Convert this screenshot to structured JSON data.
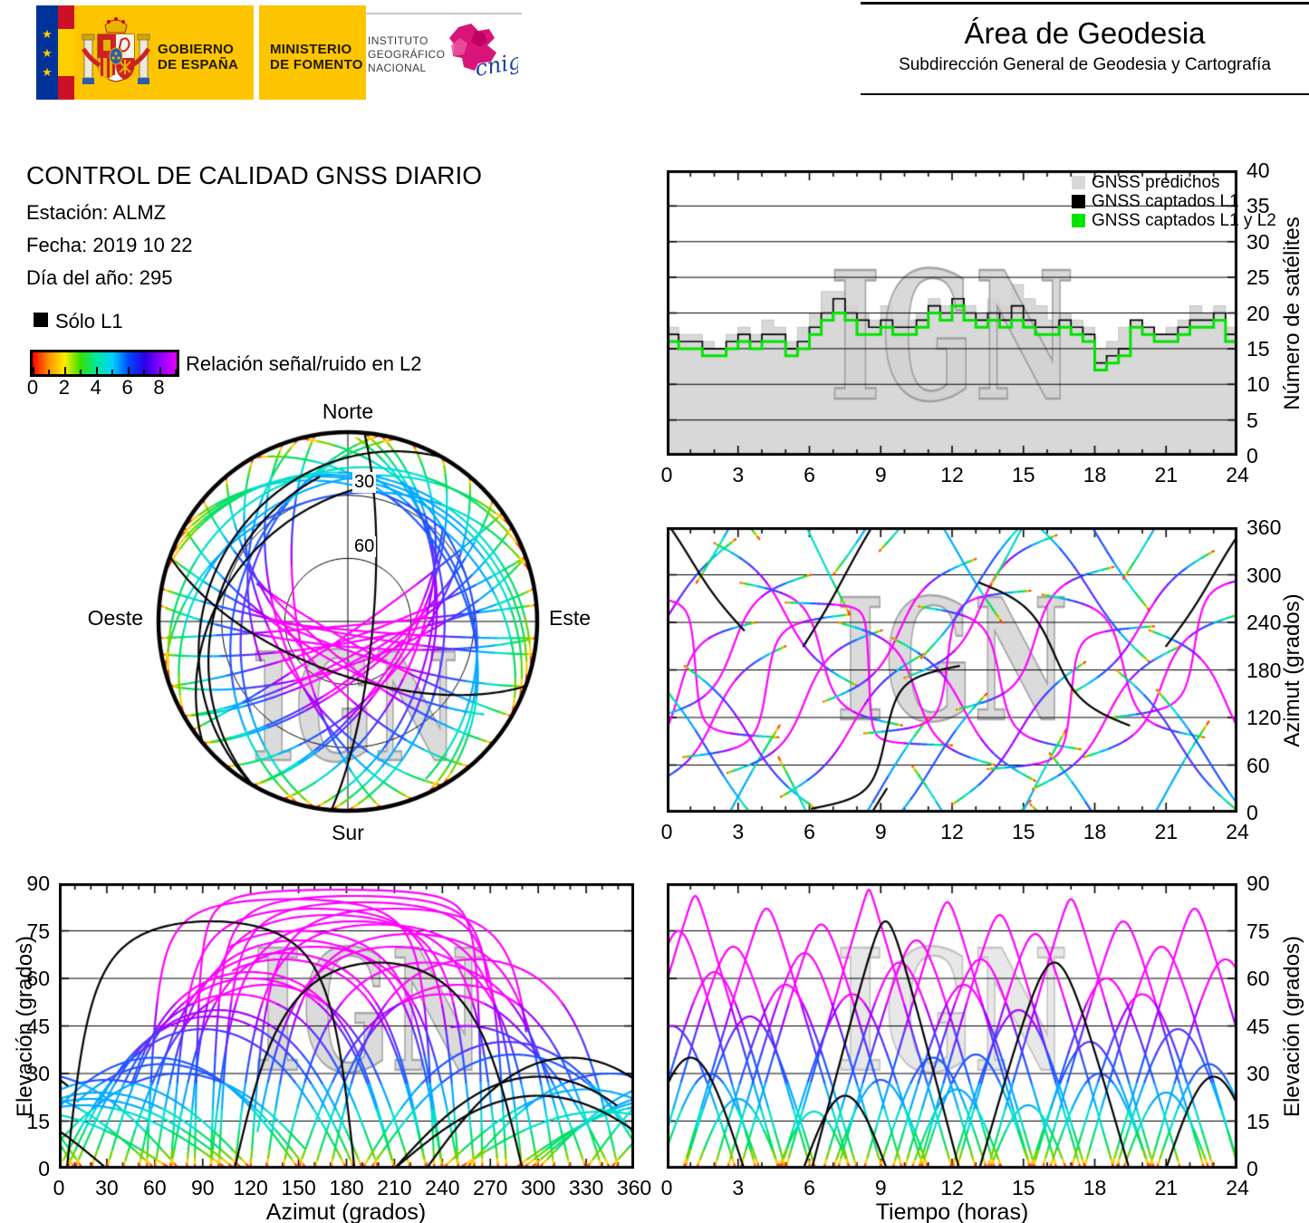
{
  "watermark": "IGN",
  "banner": {
    "gobierno_line1": "GOBIERNO",
    "gobierno_line2": "DE ESPAÑA",
    "ministerio_line1": "MINISTERIO",
    "ministerio_line2": "DE FOMENTO",
    "instituto_line1": "INSTITUTO",
    "instituto_line2": "GEOGRÁFICO",
    "instituto_line3": "NACIONAL",
    "cnig_text": "cnig",
    "colors": {
      "yellow": "#fdc400",
      "navy": "#003399",
      "flag_red": "#cc1126",
      "star": "#ffcc00",
      "cnig_magenta": "#d6006e",
      "cnig_blue": "#1a3f9e"
    }
  },
  "header_right": {
    "title": "Área de Geodesia",
    "subtitle": "Subdirección General de Geodesia y Cartografía"
  },
  "report": {
    "title": "CONTROL DE CALIDAD GNSS DIARIO",
    "station_label": "Estación:",
    "station_value": "ALMZ",
    "date_label": "Fecha:",
    "date_value": "2019 10 22",
    "doy_label": "Día del año:",
    "doy_value": "295"
  },
  "legend": {
    "solo_l1_label": "Sólo L1",
    "solo_l1_color": "#000000",
    "colorbar_label": "Relación señal/ruido en L2",
    "colorbar_ticks": [
      "0",
      "2",
      "4",
      "6",
      "8"
    ],
    "colorbar_range": [
      0,
      9
    ],
    "colorbar_colors": [
      "#ff0000",
      "#ff9000",
      "#ffee00",
      "#33e000",
      "#00e8a0",
      "#00cfff",
      "#0048ff",
      "#2a00e8",
      "#9000ff",
      "#e400ff"
    ]
  },
  "track_color_scale": [
    {
      "min_elevation": 52,
      "color": "#ff00ff"
    },
    {
      "min_elevation": 44,
      "color": "#a800ff"
    },
    {
      "min_elevation": 36,
      "color": "#5533ff"
    },
    {
      "min_elevation": 27,
      "color": "#2255ff"
    },
    {
      "min_elevation": 19,
      "color": "#00aaff"
    },
    {
      "min_elevation": 12,
      "color": "#00ddcc"
    },
    {
      "min_elevation": 6,
      "color": "#00dd66"
    },
    {
      "min_elevation": 3,
      "color": "#66d400"
    },
    {
      "min_elevation": 1.5,
      "color": "#ffcc00"
    },
    {
      "min_elevation": 0,
      "color": "#ff4400"
    }
  ],
  "l1_only_color": "#000000",
  "passes": [
    {
      "tc": 0.2,
      "azc": 255,
      "emax": 45,
      "dur": 5.4,
      "dir": 1
    },
    {
      "tc": 0.5,
      "azc": 150,
      "emax": 75,
      "dur": 6.5,
      "dir": 1
    },
    {
      "tc": 1.0,
      "azc": 320,
      "emax": 35,
      "dur": 4.5,
      "dir": -1,
      "l1_only": true
    },
    {
      "tc": 1.2,
      "azc": 185,
      "emax": 86,
      "dur": 7.0,
      "dir": -1
    },
    {
      "tc": 1.8,
      "azc": 75,
      "emax": 30,
      "dur": 4.2,
      "dir": -1
    },
    {
      "tc": 2.0,
      "azc": 120,
      "emax": 62,
      "dur": 6.0,
      "dir": 1
    },
    {
      "tc": 2.8,
      "azc": 210,
      "emax": 70,
      "dur": 6.5,
      "dir": 1
    },
    {
      "tc": 3.0,
      "azc": 20,
      "emax": 22,
      "dur": 3.5,
      "dir": 1
    },
    {
      "tc": 3.5,
      "azc": 95,
      "emax": 48,
      "dur": 5.5,
      "dir": -1
    },
    {
      "tc": 4.2,
      "azc": 160,
      "emax": 82,
      "dur": 7.0,
      "dir": 1
    },
    {
      "tc": 5.0,
      "azc": 250,
      "emax": 58,
      "dur": 6.0,
      "dir": -1
    },
    {
      "tc": 5.8,
      "azc": 140,
      "emax": 68,
      "dur": 6.5,
      "dir": 1
    },
    {
      "tc": 6.2,
      "azc": 340,
      "emax": 18,
      "dur": 3.0,
      "dir": -1
    },
    {
      "tc": 6.5,
      "azc": 200,
      "emax": 77,
      "dur": 6.8,
      "dir": -1
    },
    {
      "tc": 7.5,
      "azc": 300,
      "emax": 23,
      "dur": 3.5,
      "dir": 1,
      "l1_only": true
    },
    {
      "tc": 7.8,
      "azc": 110,
      "emax": 55,
      "dur": 6.0,
      "dir": 1
    },
    {
      "tc": 8.5,
      "azc": 175,
      "emax": 88,
      "dur": 7.0,
      "dir": -1
    },
    {
      "tc": 9.0,
      "azc": 30,
      "emax": 28,
      "dur": 4.0,
      "dir": 1
    },
    {
      "tc": 9.2,
      "azc": 95,
      "emax": 78,
      "dur": 6.2,
      "dir": 1,
      "l1_only": true
    },
    {
      "tc": 9.8,
      "azc": 230,
      "emax": 65,
      "dur": 6.4,
      "dir": 1
    },
    {
      "tc": 10.5,
      "azc": 150,
      "emax": 72,
      "dur": 6.6,
      "dir": -1
    },
    {
      "tc": 11.2,
      "azc": 60,
      "emax": 35,
      "dur": 4.5,
      "dir": 1
    },
    {
      "tc": 11.8,
      "azc": 190,
      "emax": 84,
      "dur": 7.0,
      "dir": 1
    },
    {
      "tc": 12.2,
      "azc": 330,
      "emax": 25,
      "dur": 3.8,
      "dir": -1
    },
    {
      "tc": 12.5,
      "azc": 130,
      "emax": 58,
      "dur": 6.0,
      "dir": -1
    },
    {
      "tc": 13.0,
      "azc": 285,
      "emax": 36,
      "dur": 4.6,
      "dir": 1
    },
    {
      "tc": 13.2,
      "azc": 260,
      "emax": 66,
      "dur": 6.4,
      "dir": 1
    },
    {
      "tc": 14.0,
      "azc": 170,
      "emax": 80,
      "dur": 6.8,
      "dir": -1
    },
    {
      "tc": 14.8,
      "azc": 100,
      "emax": 50,
      "dur": 5.6,
      "dir": 1
    },
    {
      "tc": 15.2,
      "azc": 15,
      "emax": 20,
      "dur": 3.2,
      "dir": 1
    },
    {
      "tc": 15.5,
      "azc": 220,
      "emax": 74,
      "dur": 6.6,
      "dir": 1
    },
    {
      "tc": 16.3,
      "azc": 200,
      "emax": 65,
      "dur": 6.3,
      "dir": -1,
      "l1_only": true
    },
    {
      "tc": 17.0,
      "azc": 145,
      "emax": 85,
      "dur": 7.0,
      "dir": 1
    },
    {
      "tc": 17.8,
      "azc": 280,
      "emax": 40,
      "dur": 5.0,
      "dir": -1
    },
    {
      "tc": 18.2,
      "azc": 345,
      "emax": 30,
      "dur": 4.2,
      "dir": -1
    },
    {
      "tc": 18.5,
      "azc": 120,
      "emax": 60,
      "dur": 6.2,
      "dir": 1
    },
    {
      "tc": 19.2,
      "azc": 185,
      "emax": 78,
      "dur": 6.8,
      "dir": -1
    },
    {
      "tc": 20.0,
      "azc": 240,
      "emax": 55,
      "dur": 6.0,
      "dir": 1
    },
    {
      "tc": 20.8,
      "azc": 160,
      "emax": 70,
      "dur": 6.5,
      "dir": 1
    },
    {
      "tc": 21.0,
      "azc": 25,
      "emax": 24,
      "dur": 3.6,
      "dir": 1
    },
    {
      "tc": 21.5,
      "azc": 90,
      "emax": 44,
      "dur": 5.2,
      "dir": -1
    },
    {
      "tc": 22.2,
      "azc": 210,
      "emax": 82,
      "dur": 7.0,
      "dir": 1
    },
    {
      "tc": 22.8,
      "azc": 65,
      "emax": 33,
      "dur": 4.4,
      "dir": -1
    },
    {
      "tc": 23.0,
      "azc": 300,
      "emax": 29,
      "dur": 4.0,
      "dir": 1,
      "l1_only": true
    },
    {
      "tc": 23.5,
      "azc": 140,
      "emax": 66,
      "dur": 6.4,
      "dir": -1
    }
  ],
  "chart_data": [
    {
      "id": "sat_count",
      "type": "area",
      "ylabel": "Número de satélites",
      "xlim": [
        0,
        24
      ],
      "ylim": [
        0,
        40
      ],
      "xticks": [
        "0",
        "3",
        "6",
        "9",
        "12",
        "15",
        "18",
        "21",
        "24"
      ],
      "yticks": [
        "0",
        "5",
        "10",
        "15",
        "20",
        "25",
        "30",
        "35",
        "40"
      ],
      "grid_y": [
        5,
        10,
        15,
        20,
        25,
        30,
        35
      ],
      "t_step_hours": 0.5,
      "series": [
        {
          "name": "GNSS predichos",
          "color": "#d8d8d8",
          "values": [
            18,
            17,
            17,
            16,
            15,
            17,
            18,
            17,
            19,
            18,
            16,
            18,
            20,
            23,
            23,
            21,
            20,
            19,
            21,
            19,
            19,
            20,
            22,
            21,
            22,
            21,
            20,
            22,
            21,
            24,
            22,
            21,
            19,
            20,
            19,
            18,
            15,
            16,
            18,
            19,
            18,
            17,
            18,
            19,
            21,
            20,
            21,
            18,
            17
          ]
        },
        {
          "name": "GNSS captados L1",
          "color": "#000000",
          "values": [
            17,
            16,
            16,
            15,
            15,
            16,
            17,
            16,
            17,
            17,
            15,
            16,
            18,
            20,
            22,
            20,
            19,
            18,
            19,
            18,
            18,
            19,
            21,
            20,
            22,
            20,
            19,
            20,
            19,
            21,
            19,
            18,
            18,
            19,
            18,
            17,
            13,
            14,
            15,
            19,
            18,
            17,
            17,
            18,
            19,
            19,
            20,
            17,
            17
          ]
        },
        {
          "name": "GNSS captados L1 y L2",
          "color": "#00e400",
          "values": [
            16,
            15,
            15,
            14,
            14,
            15,
            16,
            15,
            16,
            16,
            14,
            15,
            17,
            19,
            20,
            19,
            17,
            17,
            18,
            17,
            17,
            18,
            20,
            19,
            21,
            19,
            18,
            19,
            18,
            19,
            18,
            17,
            17,
            18,
            17,
            16,
            12,
            13,
            14,
            18,
            17,
            16,
            16,
            17,
            18,
            18,
            19,
            16,
            16
          ]
        }
      ]
    },
    {
      "id": "azimuth_vs_time",
      "type": "line",
      "ylabel": "Azimut (grados)",
      "xlim": [
        0,
        24
      ],
      "ylim": [
        0,
        360
      ],
      "xticks": [
        "0",
        "3",
        "6",
        "9",
        "12",
        "15",
        "18",
        "21",
        "24"
      ],
      "yticks": [
        "0",
        "60",
        "120",
        "180",
        "240",
        "300",
        "360"
      ],
      "grid_y": [
        60,
        120,
        180,
        240,
        300
      ],
      "source": "passes"
    },
    {
      "id": "elevation_vs_azimuth",
      "type": "line",
      "xlabel": "Azimut (grados)",
      "ylabel": "Elevación (grados)",
      "xlim": [
        0,
        360
      ],
      "ylim": [
        0,
        90
      ],
      "xticks": [
        "0",
        "30",
        "60",
        "90",
        "120",
        "150",
        "180",
        "210",
        "240",
        "270",
        "300",
        "330",
        "360"
      ],
      "yticks": [
        "0",
        "15",
        "30",
        "45",
        "60",
        "75",
        "90"
      ],
      "grid_y": [
        15,
        30,
        45,
        60,
        75
      ],
      "source": "passes"
    },
    {
      "id": "elevation_vs_time",
      "type": "line",
      "xlabel": "Tiempo (horas)",
      "ylabel": "Elevación (grados)",
      "xlim": [
        0,
        24
      ],
      "ylim": [
        0,
        90
      ],
      "xticks": [
        "0",
        "3",
        "6",
        "9",
        "12",
        "15",
        "18",
        "21",
        "24"
      ],
      "yticks": [
        "0",
        "15",
        "30",
        "45",
        "60",
        "75",
        "90"
      ],
      "grid_y": [
        15,
        30,
        45,
        60,
        75
      ],
      "source": "passes"
    },
    {
      "id": "skyplot",
      "type": "polar",
      "label_north": "Norte",
      "label_south": "Sur",
      "label_east": "Este",
      "label_west": "Oeste",
      "elevation_rings_deg": [
        30,
        60
      ],
      "ring_labels": [
        "30",
        "60"
      ],
      "source": "passes"
    }
  ]
}
